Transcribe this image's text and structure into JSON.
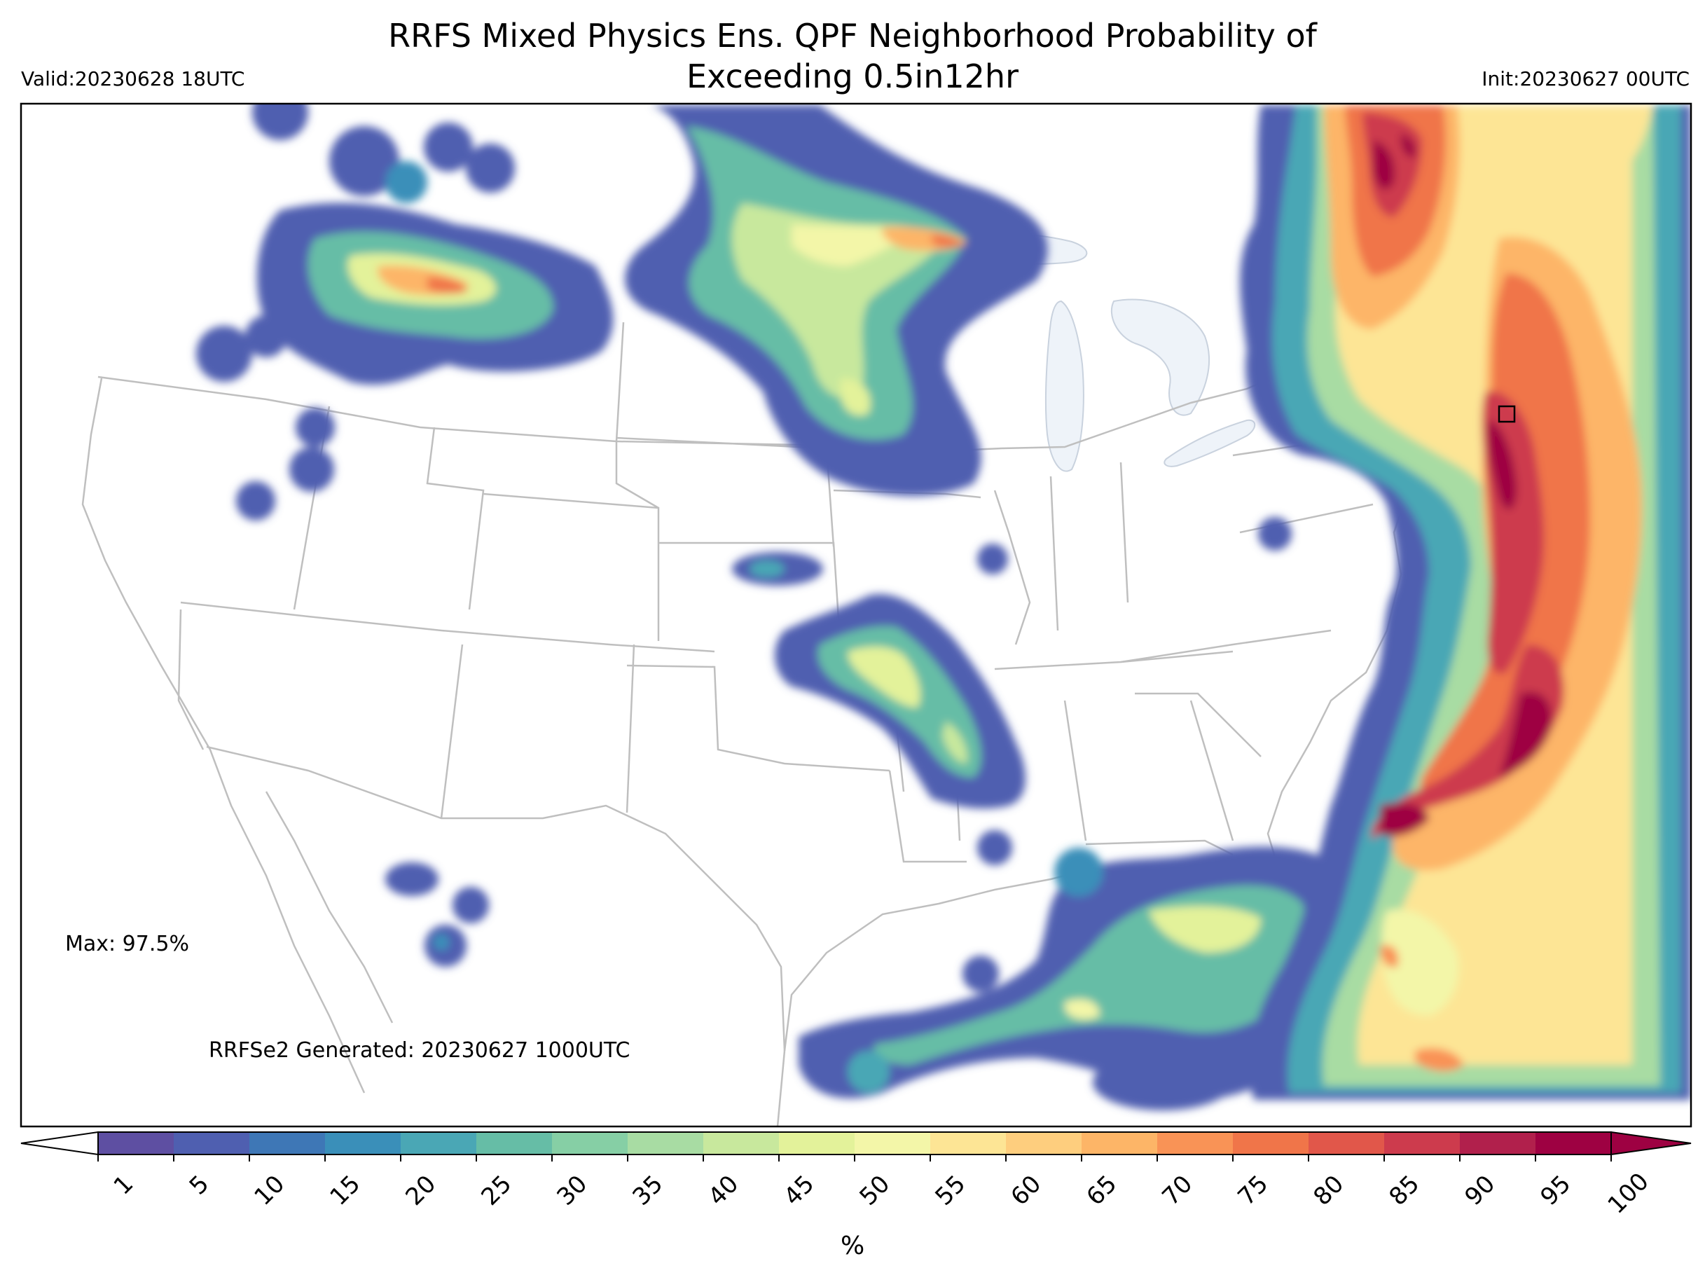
{
  "header": {
    "title_line1": "RRFS Mixed Physics Ens. QPF Neighborhood Probability of",
    "title_line2": "Exceeding 0.5in12hr",
    "valid": "Valid:20230628 18UTC",
    "init": "Init:20230627 00UTC"
  },
  "map": {
    "max_label": "Max: 97.5%",
    "generated_label": "RRFSe2 Generated: 20230627 1000UTC",
    "lake_color": "#eef3f9",
    "border_color": "#bfbfbf"
  },
  "colorbar": {
    "units": "%",
    "ticks": [
      "1",
      "5",
      "10",
      "15",
      "20",
      "25",
      "30",
      "35",
      "40",
      "45",
      "50",
      "55",
      "60",
      "65",
      "70",
      "75",
      "80",
      "85",
      "90",
      "95",
      "100"
    ],
    "colors": [
      "#5e4fa2",
      "#4f5fb0",
      "#3e77b6",
      "#3a8fb9",
      "#4aa7b5",
      "#66bda6",
      "#86cfa5",
      "#a8dca3",
      "#c8e89d",
      "#e3f29a",
      "#f3f6a8",
      "#fde595",
      "#fece7e",
      "#fdb567",
      "#f99356",
      "#f07549",
      "#e1574a",
      "#cd3b4d",
      "#b1204c",
      "#9e0142"
    ],
    "under_color": "#ffffff",
    "over_color": "#9e0142"
  }
}
